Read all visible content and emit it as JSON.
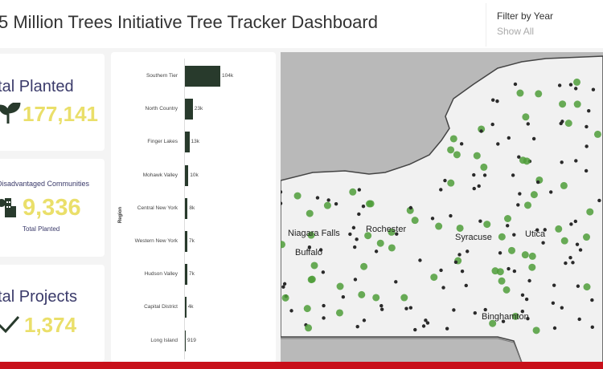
{
  "header": {
    "title": "5 Million Trees Initiative Tree Tracker Dashboard"
  },
  "filter": {
    "label": "Filter by Year",
    "value": "Show All"
  },
  "kpis": {
    "planted": {
      "title": "Total Planted",
      "value": "177,141",
      "icon": "seedling-icon"
    },
    "disadvantaged": {
      "title": "Disadvantaged Communities",
      "value": "9,336",
      "subtitle": "Total Planted",
      "icon": "city-tree-icon"
    },
    "projects": {
      "title": "Total Projects",
      "value": "1,374",
      "icon": "checkmark-icon"
    }
  },
  "chart_data": {
    "type": "bar",
    "orientation": "horizontal",
    "ylabel": "Region",
    "categories": [
      "Southern Tier",
      "North Country",
      "Finger Lakes",
      "Mohawk Valley",
      "Central New York",
      "Western New York",
      "Hudson Valley",
      "Capital District",
      "Long Island"
    ],
    "values": [
      104000,
      23000,
      13000,
      10000,
      8000,
      7000,
      7000,
      4000,
      919
    ],
    "data_labels": [
      "104k",
      "23k",
      "13k",
      "10k",
      "8k",
      "7k",
      "7k",
      "4k",
      "919"
    ],
    "bar_color": "#283a2c"
  },
  "map": {
    "cities": [
      "Niagara Falls",
      "Buffalo",
      "Rochester",
      "Syracuse",
      "Utica",
      "Binghamton"
    ],
    "colors": {
      "water": "#b9b9b9",
      "land": "#f1f1f1",
      "project_dot": "#2a2a2a",
      "planting_dot": "#4f9e3a"
    }
  }
}
